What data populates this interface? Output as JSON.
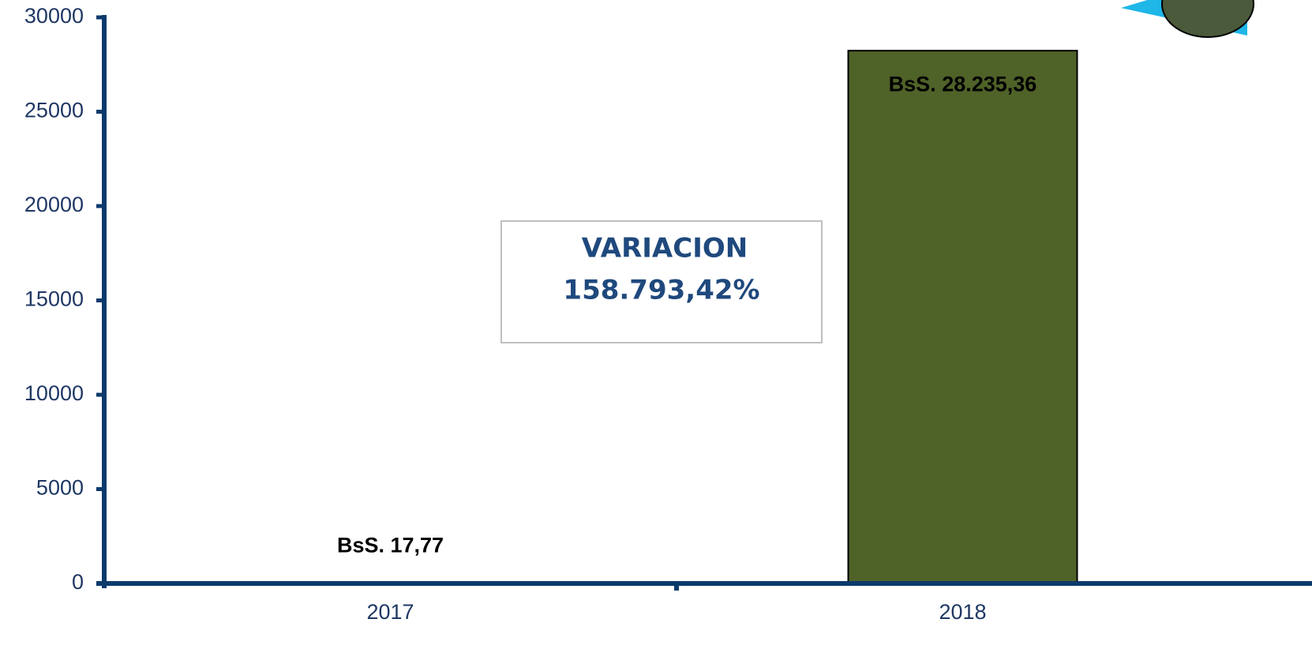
{
  "chart_data": {
    "type": "bar",
    "categories": [
      "2017",
      "2018"
    ],
    "values": [
      17.77,
      28235.36
    ],
    "value_labels": [
      "BsS. 17,77",
      "BsS. 28.235,36"
    ],
    "color": "#4f6228",
    "ylim": [
      0,
      30000
    ],
    "yticks": [
      0,
      5000,
      10000,
      15000,
      20000,
      25000,
      30000
    ],
    "annotation": [
      "VARIACION",
      "158.793,42%"
    ]
  }
}
